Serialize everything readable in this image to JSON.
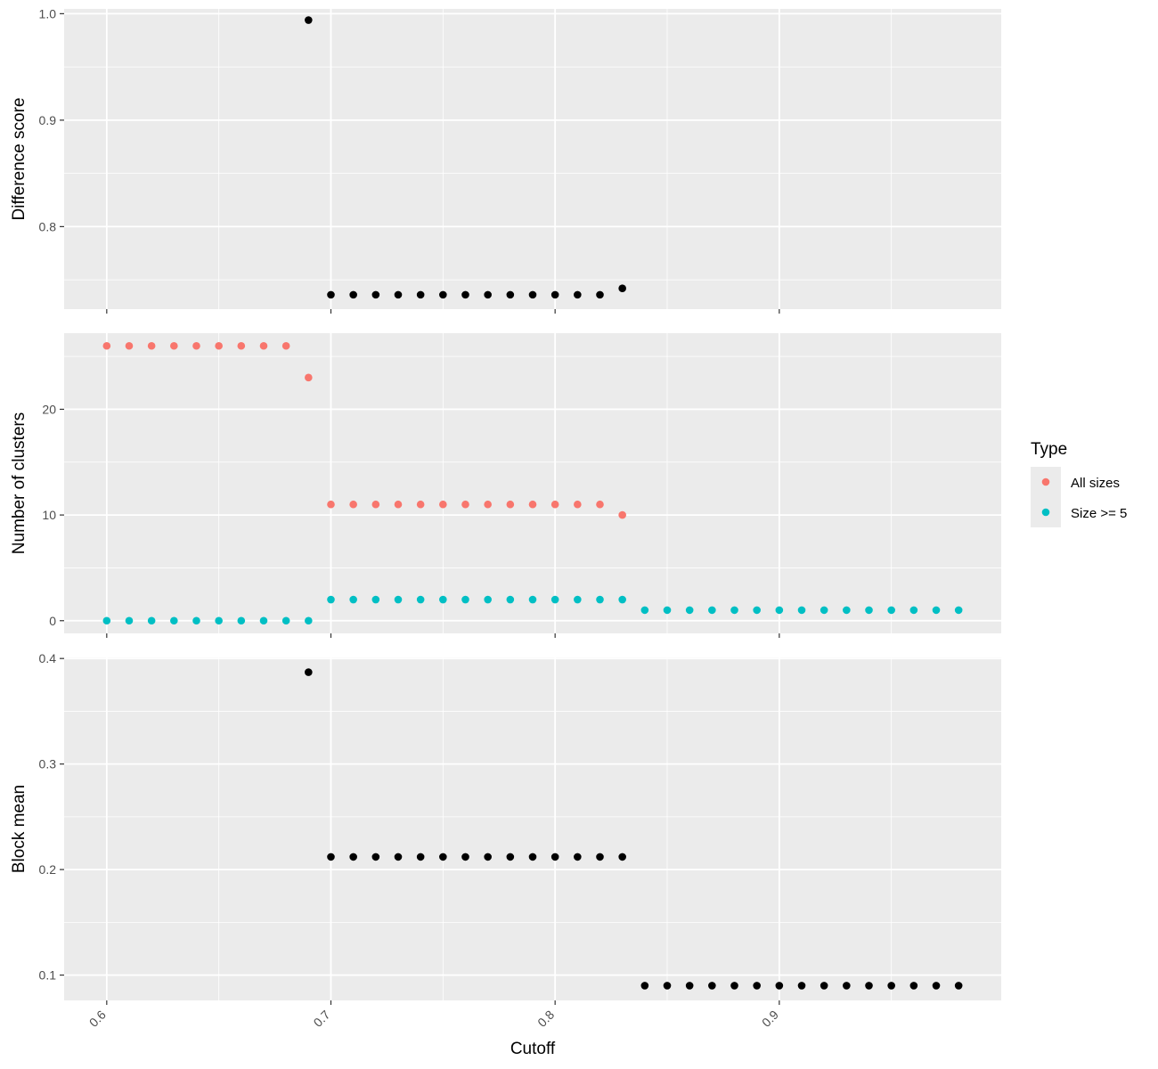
{
  "chart_data": {
    "type": "scatter",
    "xlabel": "Cutoff",
    "xlim": [
      0.581,
      0.999
    ],
    "x_ticks": [
      0.6,
      0.7,
      0.8,
      0.9
    ],
    "x_tick_labels": [
      "0.6",
      "0.7",
      "0.8",
      "0.9"
    ],
    "grid": true,
    "colors": {
      "panel_bg": "#EBEBEB",
      "grid": "#FFFFFF",
      "point_default": "#000000",
      "all_sizes": "#F8766D",
      "size_ge_5": "#00BFC4"
    },
    "legend": {
      "title": "Type",
      "placement": "right",
      "entries": [
        {
          "label": "All sizes",
          "color": "#F8766D"
        },
        {
          "label": "Size >= 5",
          "color": "#00BFC4"
        }
      ]
    },
    "panels": [
      {
        "ylabel": "Difference score",
        "ylim": [
          0.7225,
          1.0045
        ],
        "y_ticks": [
          0.8,
          0.9,
          1.0
        ],
        "y_tick_labels": [
          "0.8",
          "0.9",
          "1.0"
        ],
        "series": [
          {
            "color": "#000000",
            "x": [
              0.69,
              0.7,
              0.71,
              0.72,
              0.73,
              0.74,
              0.75,
              0.76,
              0.77,
              0.78,
              0.79,
              0.8,
              0.81,
              0.82,
              0.83
            ],
            "y": [
              0.994,
              0.736,
              0.736,
              0.736,
              0.736,
              0.736,
              0.736,
              0.736,
              0.736,
              0.736,
              0.736,
              0.736,
              0.736,
              0.736,
              0.742
            ]
          }
        ]
      },
      {
        "ylabel": "Number of clusters",
        "ylim": [
          -1.2,
          27.2
        ],
        "y_ticks": [
          0,
          10,
          20
        ],
        "y_tick_labels": [
          "0",
          "10",
          "20"
        ],
        "series": [
          {
            "name": "All sizes",
            "color": "#F8766D",
            "x": [
              0.6,
              0.61,
              0.62,
              0.63,
              0.64,
              0.65,
              0.66,
              0.67,
              0.68,
              0.69,
              0.7,
              0.71,
              0.72,
              0.73,
              0.74,
              0.75,
              0.76,
              0.77,
              0.78,
              0.79,
              0.8,
              0.81,
              0.82,
              0.83
            ],
            "y": [
              26,
              26,
              26,
              26,
              26,
              26,
              26,
              26,
              26,
              23,
              11,
              11,
              11,
              11,
              11,
              11,
              11,
              11,
              11,
              11,
              11,
              11,
              11,
              10
            ]
          },
          {
            "name": "Size >= 5",
            "color": "#00BFC4",
            "x": [
              0.6,
              0.61,
              0.62,
              0.63,
              0.64,
              0.65,
              0.66,
              0.67,
              0.68,
              0.69,
              0.7,
              0.71,
              0.72,
              0.73,
              0.74,
              0.75,
              0.76,
              0.77,
              0.78,
              0.79,
              0.8,
              0.81,
              0.82,
              0.83,
              0.84,
              0.85,
              0.86,
              0.87,
              0.88,
              0.89,
              0.9,
              0.91,
              0.92,
              0.93,
              0.94,
              0.95,
              0.96,
              0.97,
              0.98
            ],
            "y": [
              0,
              0,
              0,
              0,
              0,
              0,
              0,
              0,
              0,
              0,
              2,
              2,
              2,
              2,
              2,
              2,
              2,
              2,
              2,
              2,
              2,
              2,
              2,
              2,
              1,
              1,
              1,
              1,
              1,
              1,
              1,
              1,
              1,
              1,
              1,
              1,
              1,
              1,
              1
            ]
          }
        ]
      },
      {
        "ylabel": "Block mean",
        "ylim": [
          0.076,
          0.401
        ],
        "y_ticks": [
          0.1,
          0.2,
          0.3,
          0.4
        ],
        "y_tick_labels": [
          "0.1",
          "0.2",
          "0.3",
          "0.4"
        ],
        "series": [
          {
            "color": "#000000",
            "x": [
              0.69,
              0.7,
              0.71,
              0.72,
              0.73,
              0.74,
              0.75,
              0.76,
              0.77,
              0.78,
              0.79,
              0.8,
              0.81,
              0.82,
              0.83,
              0.84,
              0.85,
              0.86,
              0.87,
              0.88,
              0.89,
              0.9,
              0.91,
              0.92,
              0.93,
              0.94,
              0.95,
              0.96,
              0.97,
              0.98
            ],
            "y": [
              0.387,
              0.212,
              0.212,
              0.212,
              0.212,
              0.212,
              0.212,
              0.212,
              0.212,
              0.212,
              0.212,
              0.212,
              0.212,
              0.212,
              0.212,
              0.09,
              0.09,
              0.09,
              0.09,
              0.09,
              0.09,
              0.09,
              0.09,
              0.09,
              0.09,
              0.09,
              0.09,
              0.09,
              0.09,
              0.09
            ]
          }
        ]
      }
    ]
  }
}
